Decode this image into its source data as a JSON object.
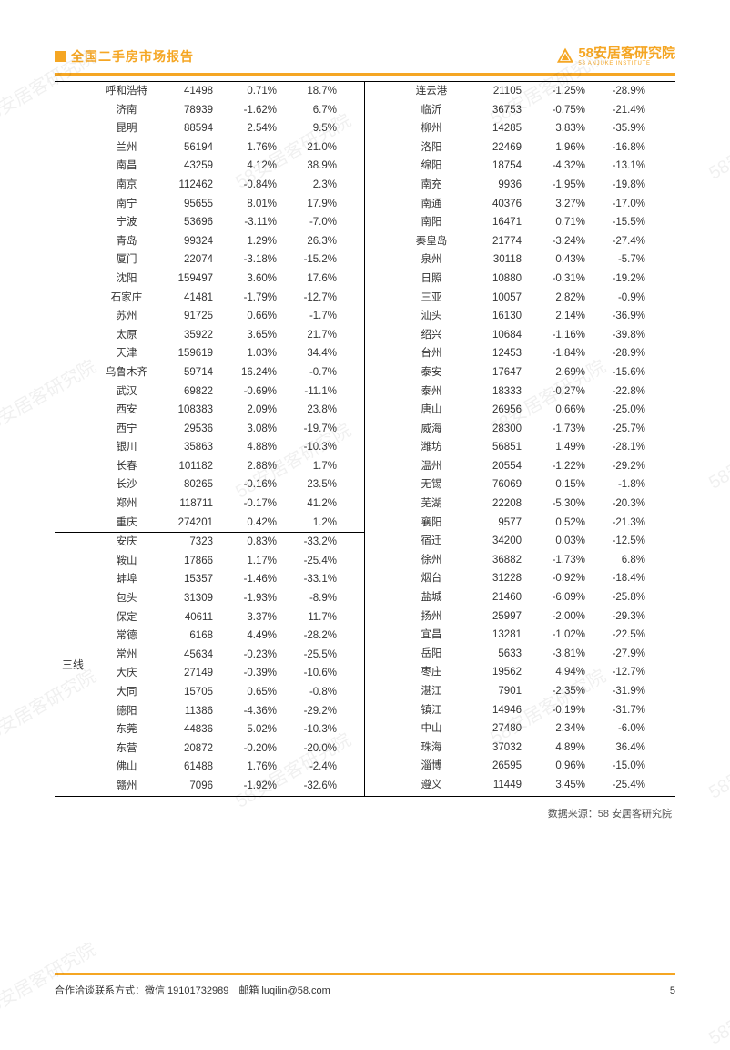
{
  "header": {
    "title": "全国二手房市场报告",
    "logo_text": "58安居客研究院",
    "logo_sub": "58 ANJUKE INSTITUTE"
  },
  "colors": {
    "accent": "#f5a623",
    "text": "#333333",
    "rule": "#000000",
    "watermark": "rgba(0,0,0,0.06)",
    "background": "#ffffff"
  },
  "table": {
    "tier_label": "三线",
    "left_top": [
      [
        "呼和浩特",
        "41498",
        "0.71%",
        "18.7%"
      ],
      [
        "济南",
        "78939",
        "-1.62%",
        "6.7%"
      ],
      [
        "昆明",
        "88594",
        "2.54%",
        "9.5%"
      ],
      [
        "兰州",
        "56194",
        "1.76%",
        "21.0%"
      ],
      [
        "南昌",
        "43259",
        "4.12%",
        "38.9%"
      ],
      [
        "南京",
        "112462",
        "-0.84%",
        "2.3%"
      ],
      [
        "南宁",
        "95655",
        "8.01%",
        "17.9%"
      ],
      [
        "宁波",
        "53696",
        "-3.11%",
        "-7.0%"
      ],
      [
        "青岛",
        "99324",
        "1.29%",
        "26.3%"
      ],
      [
        "厦门",
        "22074",
        "-3.18%",
        "-15.2%"
      ],
      [
        "沈阳",
        "159497",
        "3.60%",
        "17.6%"
      ],
      [
        "石家庄",
        "41481",
        "-1.79%",
        "-12.7%"
      ],
      [
        "苏州",
        "91725",
        "0.66%",
        "-1.7%"
      ],
      [
        "太原",
        "35922",
        "3.65%",
        "21.7%"
      ],
      [
        "天津",
        "159619",
        "1.03%",
        "34.4%"
      ],
      [
        "乌鲁木齐",
        "59714",
        "16.24%",
        "-0.7%"
      ],
      [
        "武汉",
        "69822",
        "-0.69%",
        "-11.1%"
      ],
      [
        "西安",
        "108383",
        "2.09%",
        "23.8%"
      ],
      [
        "西宁",
        "29536",
        "3.08%",
        "-19.7%"
      ],
      [
        "银川",
        "35863",
        "4.88%",
        "-10.3%"
      ],
      [
        "长春",
        "101182",
        "2.88%",
        "1.7%"
      ],
      [
        "长沙",
        "80265",
        "-0.16%",
        "23.5%"
      ],
      [
        "郑州",
        "118711",
        "-0.17%",
        "41.2%"
      ],
      [
        "重庆",
        "274201",
        "0.42%",
        "1.2%"
      ]
    ],
    "left_bottom": [
      [
        "安庆",
        "7323",
        "0.83%",
        "-33.2%"
      ],
      [
        "鞍山",
        "17866",
        "1.17%",
        "-25.4%"
      ],
      [
        "蚌埠",
        "15357",
        "-1.46%",
        "-33.1%"
      ],
      [
        "包头",
        "31309",
        "-1.93%",
        "-8.9%"
      ],
      [
        "保定",
        "40611",
        "3.37%",
        "11.7%"
      ],
      [
        "常德",
        "6168",
        "4.49%",
        "-28.2%"
      ],
      [
        "常州",
        "45634",
        "-0.23%",
        "-25.5%"
      ],
      [
        "大庆",
        "27149",
        "-0.39%",
        "-10.6%"
      ],
      [
        "大同",
        "15705",
        "0.65%",
        "-0.8%"
      ],
      [
        "德阳",
        "11386",
        "-4.36%",
        "-29.2%"
      ],
      [
        "东莞",
        "44836",
        "5.02%",
        "-10.3%"
      ],
      [
        "东营",
        "20872",
        "-0.20%",
        "-20.0%"
      ],
      [
        "佛山",
        "61488",
        "1.76%",
        "-2.4%"
      ],
      [
        "赣州",
        "7096",
        "-1.92%",
        "-32.6%"
      ]
    ],
    "right": [
      [
        "连云港",
        "21105",
        "-1.25%",
        "-28.9%"
      ],
      [
        "临沂",
        "36753",
        "-0.75%",
        "-21.4%"
      ],
      [
        "柳州",
        "14285",
        "3.83%",
        "-35.9%"
      ],
      [
        "洛阳",
        "22469",
        "1.96%",
        "-16.8%"
      ],
      [
        "绵阳",
        "18754",
        "-4.32%",
        "-13.1%"
      ],
      [
        "南充",
        "9936",
        "-1.95%",
        "-19.8%"
      ],
      [
        "南通",
        "40376",
        "3.27%",
        "-17.0%"
      ],
      [
        "南阳",
        "16471",
        "0.71%",
        "-15.5%"
      ],
      [
        "秦皇岛",
        "21774",
        "-3.24%",
        "-27.4%"
      ],
      [
        "泉州",
        "30118",
        "0.43%",
        "-5.7%"
      ],
      [
        "日照",
        "10880",
        "-0.31%",
        "-19.2%"
      ],
      [
        "三亚",
        "10057",
        "2.82%",
        "-0.9%"
      ],
      [
        "汕头",
        "16130",
        "2.14%",
        "-36.9%"
      ],
      [
        "绍兴",
        "10684",
        "-1.16%",
        "-39.8%"
      ],
      [
        "台州",
        "12453",
        "-1.84%",
        "-28.9%"
      ],
      [
        "泰安",
        "17647",
        "2.69%",
        "-15.6%"
      ],
      [
        "泰州",
        "18333",
        "-0.27%",
        "-22.8%"
      ],
      [
        "唐山",
        "26956",
        "0.66%",
        "-25.0%"
      ],
      [
        "威海",
        "28300",
        "-1.73%",
        "-25.7%"
      ],
      [
        "潍坊",
        "56851",
        "1.49%",
        "-28.1%"
      ],
      [
        "温州",
        "20554",
        "-1.22%",
        "-29.2%"
      ],
      [
        "无锡",
        "76069",
        "0.15%",
        "-1.8%"
      ],
      [
        "芜湖",
        "22208",
        "-5.30%",
        "-20.3%"
      ],
      [
        "襄阳",
        "9577",
        "0.52%",
        "-21.3%"
      ],
      [
        "宿迁",
        "34200",
        "0.03%",
        "-12.5%"
      ],
      [
        "徐州",
        "36882",
        "-1.73%",
        "6.8%"
      ],
      [
        "烟台",
        "31228",
        "-0.92%",
        "-18.4%"
      ],
      [
        "盐城",
        "21460",
        "-6.09%",
        "-25.8%"
      ],
      [
        "扬州",
        "25997",
        "-2.00%",
        "-29.3%"
      ],
      [
        "宜昌",
        "13281",
        "-1.02%",
        "-22.5%"
      ],
      [
        "岳阳",
        "5633",
        "-3.81%",
        "-27.9%"
      ],
      [
        "枣庄",
        "19562",
        "4.94%",
        "-12.7%"
      ],
      [
        "湛江",
        "7901",
        "-2.35%",
        "-31.9%"
      ],
      [
        "镇江",
        "14946",
        "-0.19%",
        "-31.7%"
      ],
      [
        "中山",
        "27480",
        "2.34%",
        "-6.0%"
      ],
      [
        "珠海",
        "37032",
        "4.89%",
        "36.4%"
      ],
      [
        "淄博",
        "26595",
        "0.96%",
        "-15.0%"
      ],
      [
        "遵义",
        "11449",
        "3.45%",
        "-25.4%"
      ]
    ]
  },
  "source": "数据来源：58 安居客研究院",
  "footer": {
    "contact": "合作洽谈联系方式：微信 19101732989　邮箱 luqilin@58.com",
    "page": "5"
  },
  "watermark": "58安居客研究院"
}
